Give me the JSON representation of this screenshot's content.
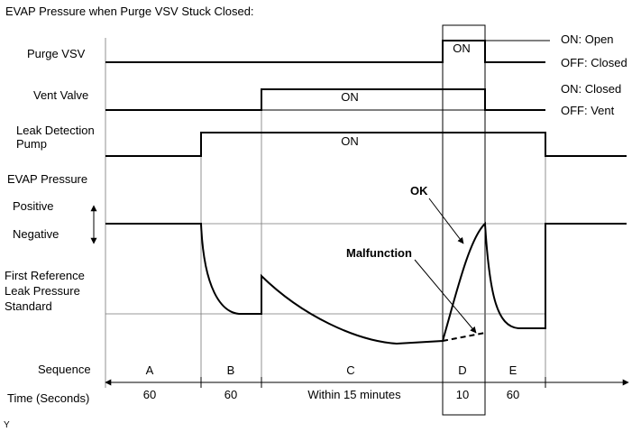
{
  "title": "EVAP Pressure when Purge VSV Stuck Closed:",
  "signals": {
    "purge_vsv": {
      "label": "Purge VSV",
      "on_text": "ON",
      "state_high": "ON: Open",
      "state_low": "OFF: Closed"
    },
    "vent_valve": {
      "label": "Vent Valve",
      "on_text": "ON",
      "state_high": "ON: Closed",
      "state_low": "OFF: Vent"
    },
    "leak_pump": {
      "label_line1": "Leak Detection",
      "label_line2": "Pump",
      "on_text": "ON"
    }
  },
  "pressure": {
    "label": "EVAP Pressure",
    "positive": "Positive",
    "negative": "Negative",
    "reference_line1": "First Reference",
    "reference_line2": "Leak Pressure",
    "reference_line3": "Standard",
    "ok_label": "OK",
    "malfunction_label": "Malfunction"
  },
  "sequence": {
    "label": "Sequence",
    "time_label": "Time (Seconds)",
    "steps": [
      {
        "name": "A",
        "time": "60"
      },
      {
        "name": "B",
        "time": "60"
      },
      {
        "name": "C",
        "time": "Within 15 minutes"
      },
      {
        "name": "D",
        "time": "10"
      },
      {
        "name": "E",
        "time": "60"
      }
    ]
  },
  "footer_mark": "Y"
}
